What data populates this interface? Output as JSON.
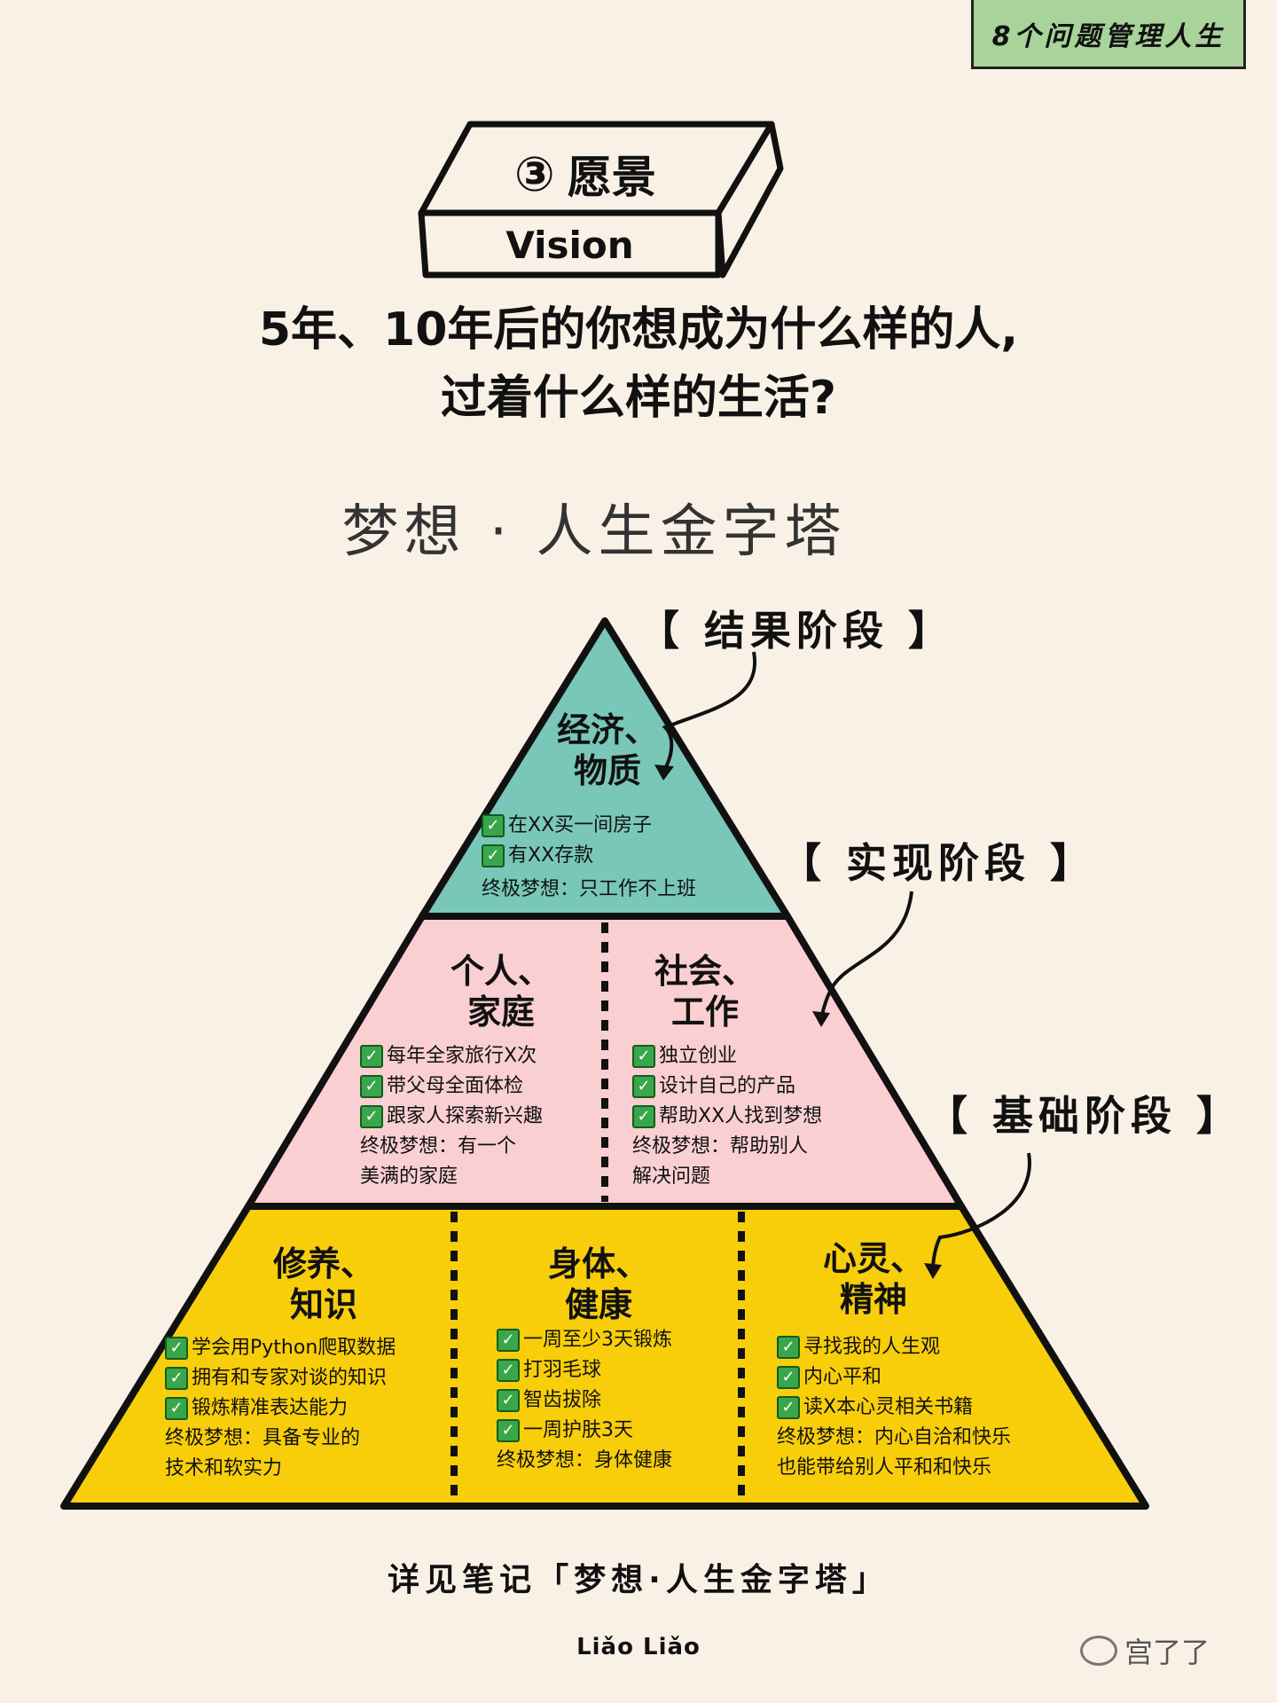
{
  "corner_tab": "8个问题管理人生",
  "box": {
    "number": "③",
    "title": "愿景",
    "subtitle": "Vision"
  },
  "question": {
    "line1": "5年、10年后的你想成为什么样的人,",
    "line2": "过着什么样的生活?"
  },
  "pyramid_title": "梦想 · 人生金字塔",
  "stages": {
    "result": "【 结果阶段 】",
    "realize": "【 实现阶段 】",
    "base": "【 基础阶段 】"
  },
  "colors": {
    "top": "#79c7b8",
    "middle": "#f9cfd2",
    "bottom": "#f8ce0a",
    "background": "#faf1e6",
    "check": "#3aa64a"
  },
  "blocks": {
    "economy": {
      "title_1": "经济、",
      "title_2": "物质",
      "items": [
        "在XX买一间房子",
        "有XX存款"
      ],
      "dream": "终极梦想：只工作不上班"
    },
    "family": {
      "title_1": "个人、",
      "title_2": "家庭",
      "items": [
        "每年全家旅行X次",
        "带父母全面体检",
        "跟家人探索新兴趣"
      ],
      "dream_1": "终极梦想：有一个",
      "dream_2": "美满的家庭"
    },
    "social": {
      "title_1": "社会、",
      "title_2": "工作",
      "items": [
        "独立创业",
        "设计自己的产品",
        "帮助XX人找到梦想"
      ],
      "dream_1": "终极梦想：帮助别人",
      "dream_2": "解决问题"
    },
    "knowledge": {
      "title_1": "修养、",
      "title_2": "知识",
      "items": [
        "学会用Python爬取数据",
        "拥有和专家对谈的知识",
        "锻炼精准表达能力"
      ],
      "dream_1": "终极梦想：具备专业的",
      "dream_2": "技术和软实力"
    },
    "health": {
      "title_1": "身体、",
      "title_2": "健康",
      "items": [
        "一周至少3天锻炼",
        "打羽毛球",
        "智齿拔除",
        "一周护肤3天"
      ],
      "dream_1": "终极梦想：身体健康"
    },
    "spirit": {
      "title_1": "心灵、",
      "title_2": "精神",
      "items": [
        "寻找我的人生观",
        "内心平和",
        "读X本心灵相关书籍"
      ],
      "dream_1": "终极梦想：内心自洽和快乐",
      "dream_2": "也能带给别人平和和快乐"
    }
  },
  "footer": "详见笔记「梦想·人生金字塔」",
  "logo": "Liǎo Liǎo",
  "watermark": "宫了了",
  "check_glyph": "✓"
}
